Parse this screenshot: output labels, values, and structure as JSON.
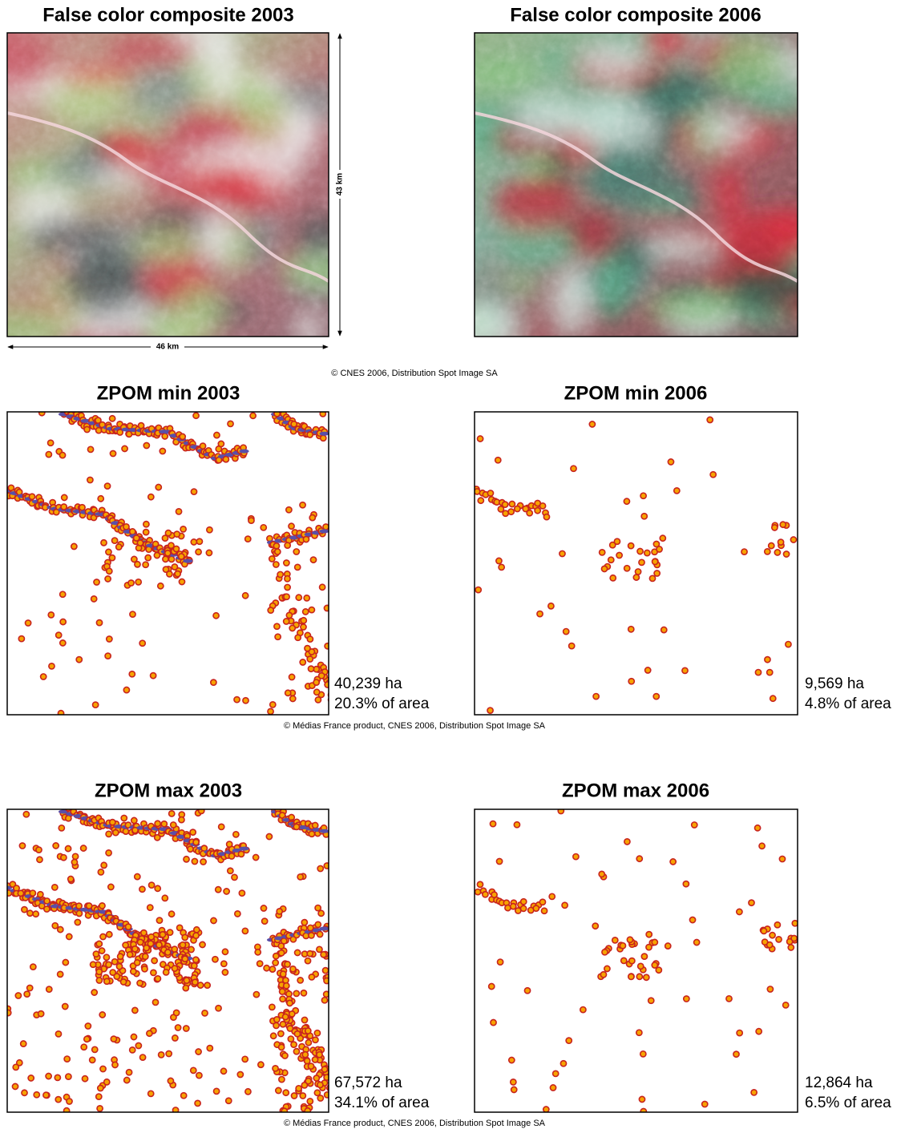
{
  "composites": [
    {
      "title": "False color composite 2003"
    },
    {
      "title": "False color composite 2006"
    }
  ],
  "scale": {
    "height": "43 km",
    "width": "46 km"
  },
  "credit_composites": "© CNES 2006, Distribution Spot Image SA",
  "zpom_min": [
    {
      "title": "ZPOM min 2003",
      "area": "40,239 ha",
      "share": "20.3% of area"
    },
    {
      "title": "ZPOM min 2006",
      "area": "9,569 ha",
      "share": "4.8% of area"
    }
  ],
  "credit_min": "© Médias France product, CNES 2006, Distribution Spot Image SA",
  "zpom_max": [
    {
      "title": "ZPOM max 2003",
      "area": "67,572 ha",
      "share": "34.1% of area"
    },
    {
      "title": "ZPOM max 2006",
      "area": "12,864 ha",
      "share": "6.5% of area"
    }
  ],
  "credit_max": "© Médias France product, CNES 2006, Distribution Spot Image SA"
}
